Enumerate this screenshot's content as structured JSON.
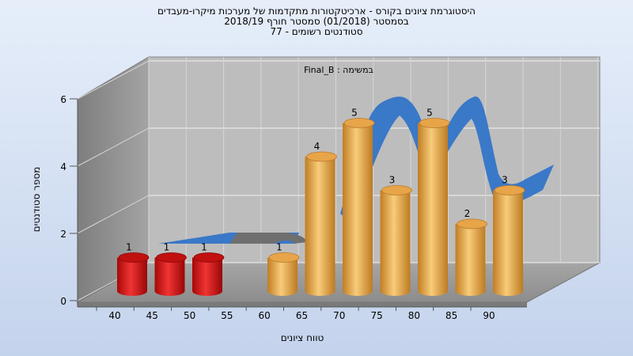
{
  "chart_data": {
    "type": "bar",
    "title_lines": [
      "היסטוגרמת ציונים בקורס - ארכיטקטורות מתקדמות של מערכות מיקרו-מעבדים",
      "בסמסטר  (01/2018)  סמסטר חורף 2018/19",
      "סטודנטים רשומים - 77"
    ],
    "annotation": "במשימה : Final_B",
    "xlabel": "טווח ציונים",
    "ylabel": "מספר סטודנטים",
    "x_ticks": [
      "40",
      "45",
      "50",
      "55",
      "60",
      "65",
      "70",
      "75",
      "80",
      "85",
      "90"
    ],
    "y_ticks": [
      "0",
      "2",
      "4",
      "6"
    ],
    "ylim": [
      0,
      6
    ],
    "bars": [
      {
        "x": 40,
        "value": 1,
        "label": "1",
        "color": "#d81414"
      },
      {
        "x": 45,
        "value": 1,
        "label": "1",
        "color": "#d81414"
      },
      {
        "x": 50,
        "value": 1,
        "label": "1",
        "color": "#d81414"
      },
      {
        "x": 60,
        "value": 1,
        "label": "1",
        "color": "#e5a044"
      },
      {
        "x": 65,
        "value": 4,
        "label": "4",
        "color": "#e5a044"
      },
      {
        "x": 70,
        "value": 5,
        "label": "5",
        "color": "#e5a044"
      },
      {
        "x": 75,
        "value": 3,
        "label": "3",
        "color": "#e5a044"
      },
      {
        "x": 80,
        "value": 5,
        "label": "5",
        "color": "#e5a044"
      },
      {
        "x": 85,
        "value": 2,
        "label": "2",
        "color": "#e5a044"
      },
      {
        "x": 90,
        "value": 3,
        "label": "3",
        "color": "#e5a044"
      }
    ],
    "curve_colors": {
      "front": "#3a78c8",
      "top": "#2f66b3",
      "shadow": "#6f6f6f"
    },
    "grid": true,
    "legend": "none"
  }
}
